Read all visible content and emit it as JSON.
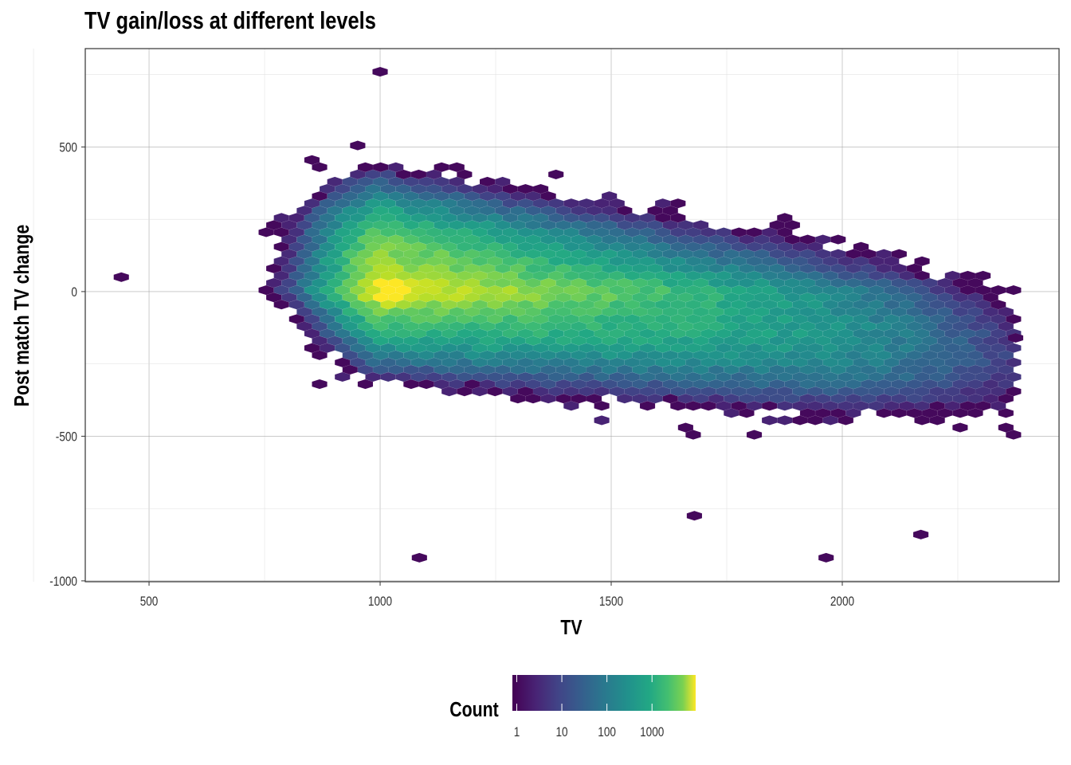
{
  "chart_data": {
    "type": "heatmap",
    "subtype": "hexbin",
    "title": "TV gain/loss at different levels",
    "xlabel": "TV",
    "ylabel": "Post match TV change",
    "xlim": [
      362,
      2469
    ],
    "ylim": [
      -1003,
      840
    ],
    "xticks": [
      500,
      1000,
      1500,
      2000
    ],
    "xtick_labels": [
      "500",
      "1000",
      "1500",
      "2000"
    ],
    "yticks": [
      500,
      0,
      -500,
      -1000
    ],
    "ytick_labels": [
      "500",
      "0",
      "-500",
      "-1000"
    ],
    "grid": true,
    "hex_binwidth": {
      "x": 33,
      "y": 25
    },
    "density_model": {
      "peak_location": {
        "x": 1000,
        "y": 0
      },
      "peak_log10_count": 3.95,
      "ridge_y": 0,
      "envelope_center_slope": -0.2,
      "envelope_center_at_1000": 60,
      "envelope_sd_y": 150,
      "data_x_range": [
        440,
        2380
      ],
      "data_y_range": [
        -920,
        760
      ]
    },
    "outliers": [
      [
        1000,
        760
      ],
      [
        1085,
        -920
      ],
      [
        1965,
        -920
      ],
      [
        2170,
        -840
      ],
      [
        1680,
        -775
      ],
      [
        440,
        50
      ],
      [
        2375,
        -160
      ]
    ],
    "legend": {
      "title": "Count",
      "scale": "log10",
      "tick_labels": [
        "1",
        "10",
        "100",
        "1000"
      ],
      "tick_values": [
        1,
        10,
        100,
        1000
      ],
      "range": [
        0.8,
        9300
      ],
      "placement": "bottom",
      "colormap": "viridis"
    }
  }
}
